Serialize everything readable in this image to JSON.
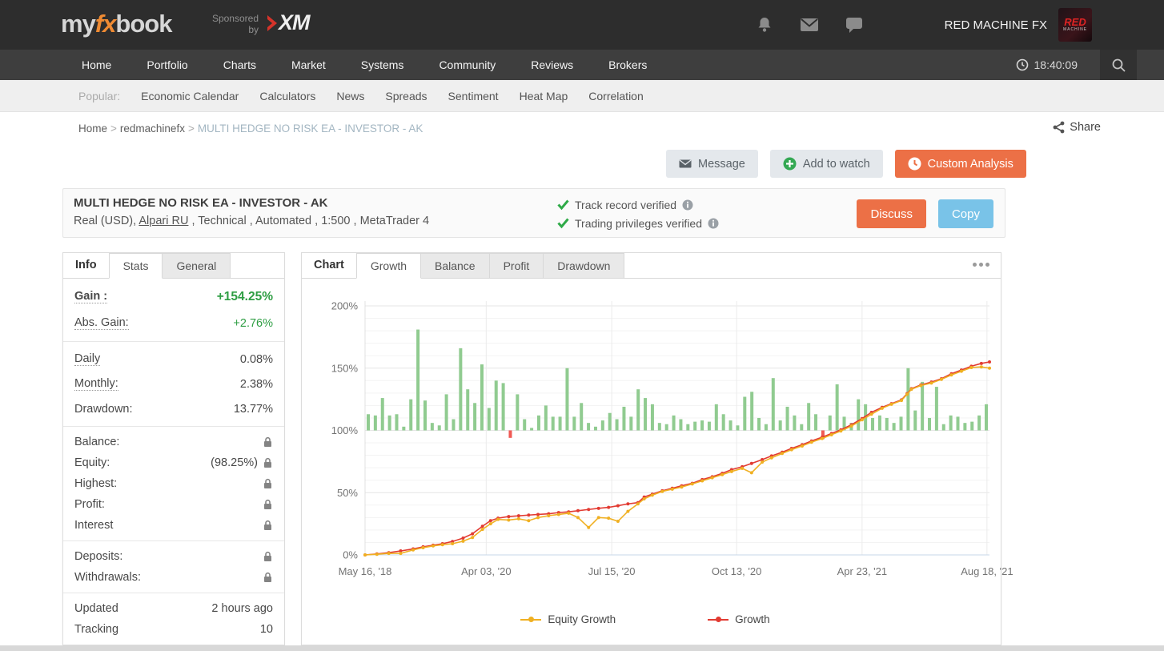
{
  "header": {
    "logo_part1": "my",
    "logo_part2": "fx",
    "logo_part3": "book",
    "sponsored_line1": "Sponsored",
    "sponsored_line2": "by",
    "sponsor_name": "XM",
    "account_name": "RED MACHINE FX",
    "avatar_text1": "RED",
    "avatar_text2": "MACHINE"
  },
  "nav": {
    "items": [
      "Home",
      "Portfolio",
      "Charts",
      "Market",
      "Systems",
      "Community",
      "Reviews",
      "Brokers"
    ],
    "time": "18:40:09"
  },
  "popular": {
    "label": "Popular:",
    "items": [
      "Economic Calendar",
      "Calculators",
      "News",
      "Spreads",
      "Sentiment",
      "Heat Map",
      "Correlation"
    ]
  },
  "breadcrumb": {
    "home": "Home",
    "user": "redmachinefx",
    "current": "MULTI HEDGE NO RISK EA - INVESTOR - AK",
    "separator": ">"
  },
  "share_label": "Share",
  "actions": {
    "message": "Message",
    "add_to_watch": "Add to watch",
    "custom_analysis": "Custom Analysis"
  },
  "system": {
    "title": "MULTI HEDGE NO RISK EA - INVESTOR - AK",
    "subtitle_prefix": "Real (USD), ",
    "broker_link": "Alpari RU",
    "subtitle_suffix": " , Technical , Automated , 1:500 , MetaTrader 4",
    "verified1": "Track record verified",
    "verified2": "Trading privileges verified",
    "discuss": "Discuss",
    "copy": "Copy"
  },
  "sidebar": {
    "title_tab": "Info",
    "tabs": [
      "Stats",
      "General"
    ],
    "active_tab": "Stats",
    "gain_label": "Gain :",
    "gain_value": "+154.25%",
    "abs_gain_label": "Abs. Gain:",
    "abs_gain_value": "+2.76%",
    "daily_label": "Daily",
    "daily_value": "0.08%",
    "monthly_label": "Monthly:",
    "monthly_value": "2.38%",
    "drawdown_label": "Drawdown:",
    "drawdown_value": "13.77%",
    "balance_label": "Balance:",
    "equity_label": "Equity:",
    "equity_value": "(98.25%)",
    "highest_label": "Highest:",
    "profit_label": "Profit:",
    "interest_label": "Interest",
    "deposits_label": "Deposits:",
    "withdrawals_label": "Withdrawals:",
    "updated_label": "Updated",
    "updated_value": "2 hours ago",
    "tracking_label": "Tracking",
    "tracking_value": "10"
  },
  "chart_panel": {
    "title_tab": "Chart",
    "tabs": [
      "Growth",
      "Balance",
      "Profit",
      "Drawdown"
    ],
    "active_tab": "Growth"
  },
  "chart_data": {
    "type": "line",
    "title": "Growth",
    "grid": true,
    "y_axis": {
      "unit": "%",
      "min": 0,
      "max": 200,
      "tick_values": [
        0,
        50,
        100,
        150,
        200
      ],
      "tick_labels": [
        "0%",
        "50%",
        "100%",
        "150%",
        "200%"
      ]
    },
    "x_axis": {
      "tick_labels": [
        "May 16, '18",
        "Apr 03, '20",
        "Jul 15, '20",
        "Oct 13, '20",
        "Apr 23, '21",
        "Aug 18, '21"
      ],
      "tick_u": [
        0,
        19.4,
        39.5,
        59.5,
        79.6,
        99.6
      ]
    },
    "legend_position": "bottom",
    "legend": [
      {
        "name": "Equity Growth",
        "color": "#f0b022"
      },
      {
        "name": "Growth",
        "color": "#e23b32"
      }
    ],
    "bars": {
      "baseline": 100,
      "color_positive": "#90cb90",
      "color_negative": "#f05a54",
      "values": [
        113,
        112,
        126,
        112,
        113,
        103,
        125,
        181,
        124,
        106,
        104,
        129,
        109,
        166,
        133,
        122,
        153,
        118,
        140,
        138,
        94,
        129,
        109,
        102,
        112,
        120,
        111,
        111,
        150,
        111,
        122,
        106,
        103,
        108,
        114,
        109,
        119,
        111,
        133,
        126,
        121,
        106,
        105,
        112,
        109,
        105,
        107,
        108,
        107,
        121,
        113,
        108,
        104,
        127,
        131,
        110,
        105,
        142,
        108,
        119,
        112,
        105,
        122,
        113,
        93,
        112,
        137,
        111,
        106,
        125,
        121,
        110,
        112,
        110,
        106,
        111,
        150,
        116,
        139,
        110,
        135,
        105,
        112,
        111,
        106,
        107,
        112,
        121
      ]
    },
    "series": [
      {
        "name": "Growth",
        "color": "#e23b32",
        "points": [
          [
            0,
            0
          ],
          [
            1.9,
            0.8
          ],
          [
            3.8,
            1.8
          ],
          [
            5.7,
            3.2
          ],
          [
            7.7,
            4.8
          ],
          [
            9.3,
            6.5
          ],
          [
            10.9,
            7.8
          ],
          [
            12.4,
            9
          ],
          [
            14,
            10.8
          ],
          [
            15.7,
            13.5
          ],
          [
            17.2,
            17
          ],
          [
            18.8,
            23
          ],
          [
            20.1,
            27.5
          ],
          [
            21.3,
            29.5
          ],
          [
            23,
            30.8
          ],
          [
            24.6,
            31.4
          ],
          [
            26.2,
            32
          ],
          [
            27.7,
            32.5
          ],
          [
            29.4,
            33
          ],
          [
            31,
            34
          ],
          [
            32.6,
            34.6
          ],
          [
            34.1,
            35.5
          ],
          [
            35.8,
            36.5
          ],
          [
            37.4,
            37.4
          ],
          [
            39,
            38.2
          ],
          [
            40.5,
            39.5
          ],
          [
            42.1,
            41
          ],
          [
            43.7,
            42
          ],
          [
            44.7,
            46.5
          ],
          [
            46,
            48.8
          ],
          [
            47.6,
            51.5
          ],
          [
            49.2,
            53.5
          ],
          [
            50.7,
            55.5
          ],
          [
            52.4,
            57.5
          ],
          [
            54,
            60.5
          ],
          [
            55.6,
            62.8
          ],
          [
            57.2,
            65.5
          ],
          [
            58.7,
            68.5
          ],
          [
            60.4,
            70.8
          ],
          [
            61.9,
            73.5
          ],
          [
            63.6,
            76.5
          ],
          [
            65.1,
            79.5
          ],
          [
            66.8,
            82.5
          ],
          [
            68.3,
            85.5
          ],
          [
            70,
            88.5
          ],
          [
            71.5,
            91.5
          ],
          [
            73.2,
            94.5
          ],
          [
            74.7,
            97.5
          ],
          [
            76.2,
            100.5
          ],
          [
            77.9,
            104.5
          ],
          [
            79.6,
            109.5
          ],
          [
            81.1,
            114.5
          ],
          [
            82.8,
            118.5
          ],
          [
            84.3,
            121.5
          ],
          [
            85.9,
            124.5
          ],
          [
            86.8,
            129.5
          ],
          [
            87.5,
            133.5
          ],
          [
            89,
            136.5
          ],
          [
            90.7,
            138.8
          ],
          [
            92.3,
            141.5
          ],
          [
            93.9,
            145.5
          ],
          [
            95.5,
            148.5
          ],
          [
            97.1,
            151.5
          ],
          [
            98.7,
            153.8
          ],
          [
            100,
            155
          ]
        ]
      },
      {
        "name": "Equity Growth",
        "color": "#f0b022",
        "points": [
          [
            0,
            0
          ],
          [
            1.9,
            0.5
          ],
          [
            3.8,
            1.2
          ],
          [
            5.7,
            1.2
          ],
          [
            7.7,
            4
          ],
          [
            9.3,
            5.8
          ],
          [
            10.9,
            7.2
          ],
          [
            12.4,
            8.2
          ],
          [
            14,
            9
          ],
          [
            15.7,
            11
          ],
          [
            17.2,
            14
          ],
          [
            18.8,
            20.5
          ],
          [
            20.1,
            25
          ],
          [
            21.3,
            28.5
          ],
          [
            23,
            28
          ],
          [
            24.6,
            29
          ],
          [
            26.2,
            27.5
          ],
          [
            27.7,
            30
          ],
          [
            29.4,
            31.5
          ],
          [
            31,
            32.5
          ],
          [
            32.6,
            33.5
          ],
          [
            34.1,
            30
          ],
          [
            35.8,
            22
          ],
          [
            37.4,
            30
          ],
          [
            39,
            29.5
          ],
          [
            40.5,
            27
          ],
          [
            42.1,
            35
          ],
          [
            43.7,
            41
          ],
          [
            44.7,
            45
          ],
          [
            46,
            48
          ],
          [
            47.6,
            51
          ],
          [
            49.2,
            52.8
          ],
          [
            50.7,
            54.5
          ],
          [
            52.4,
            57
          ],
          [
            54,
            59.5
          ],
          [
            55.6,
            62
          ],
          [
            57.2,
            64.5
          ],
          [
            58.7,
            67
          ],
          [
            60.4,
            69.5
          ],
          [
            61.9,
            66
          ],
          [
            63.6,
            74.5
          ],
          [
            65.1,
            78
          ],
          [
            66.8,
            81.5
          ],
          [
            68.3,
            84.5
          ],
          [
            70,
            87.5
          ],
          [
            71.5,
            90.5
          ],
          [
            73.2,
            93.5
          ],
          [
            74.7,
            96.5
          ],
          [
            76.2,
            99.5
          ],
          [
            77.9,
            103.5
          ],
          [
            79.6,
            108.5
          ],
          [
            81.1,
            113
          ],
          [
            82.8,
            117.8
          ],
          [
            84.3,
            121
          ],
          [
            85.9,
            124
          ],
          [
            86.8,
            129
          ],
          [
            87.5,
            133
          ],
          [
            89,
            136
          ],
          [
            90.7,
            138
          ],
          [
            92.3,
            141
          ],
          [
            93.9,
            144.5
          ],
          [
            95.5,
            147.5
          ],
          [
            97.1,
            150.5
          ],
          [
            98.7,
            151
          ],
          [
            100,
            150
          ]
        ]
      }
    ]
  },
  "colors": {
    "header_bg": "#2d2d2d",
    "nav_bg": "#3e3e3e",
    "popular_bg": "#efefef",
    "orange_accent": "#ec7046",
    "blue_accent": "#79c3e8",
    "green_accent": "#2f9e44",
    "gain_green": "#2f9e44",
    "bar_green": "#90cb90",
    "bar_red": "#f05a54",
    "growth_line": "#e23b32",
    "equity_line": "#f0b022"
  }
}
